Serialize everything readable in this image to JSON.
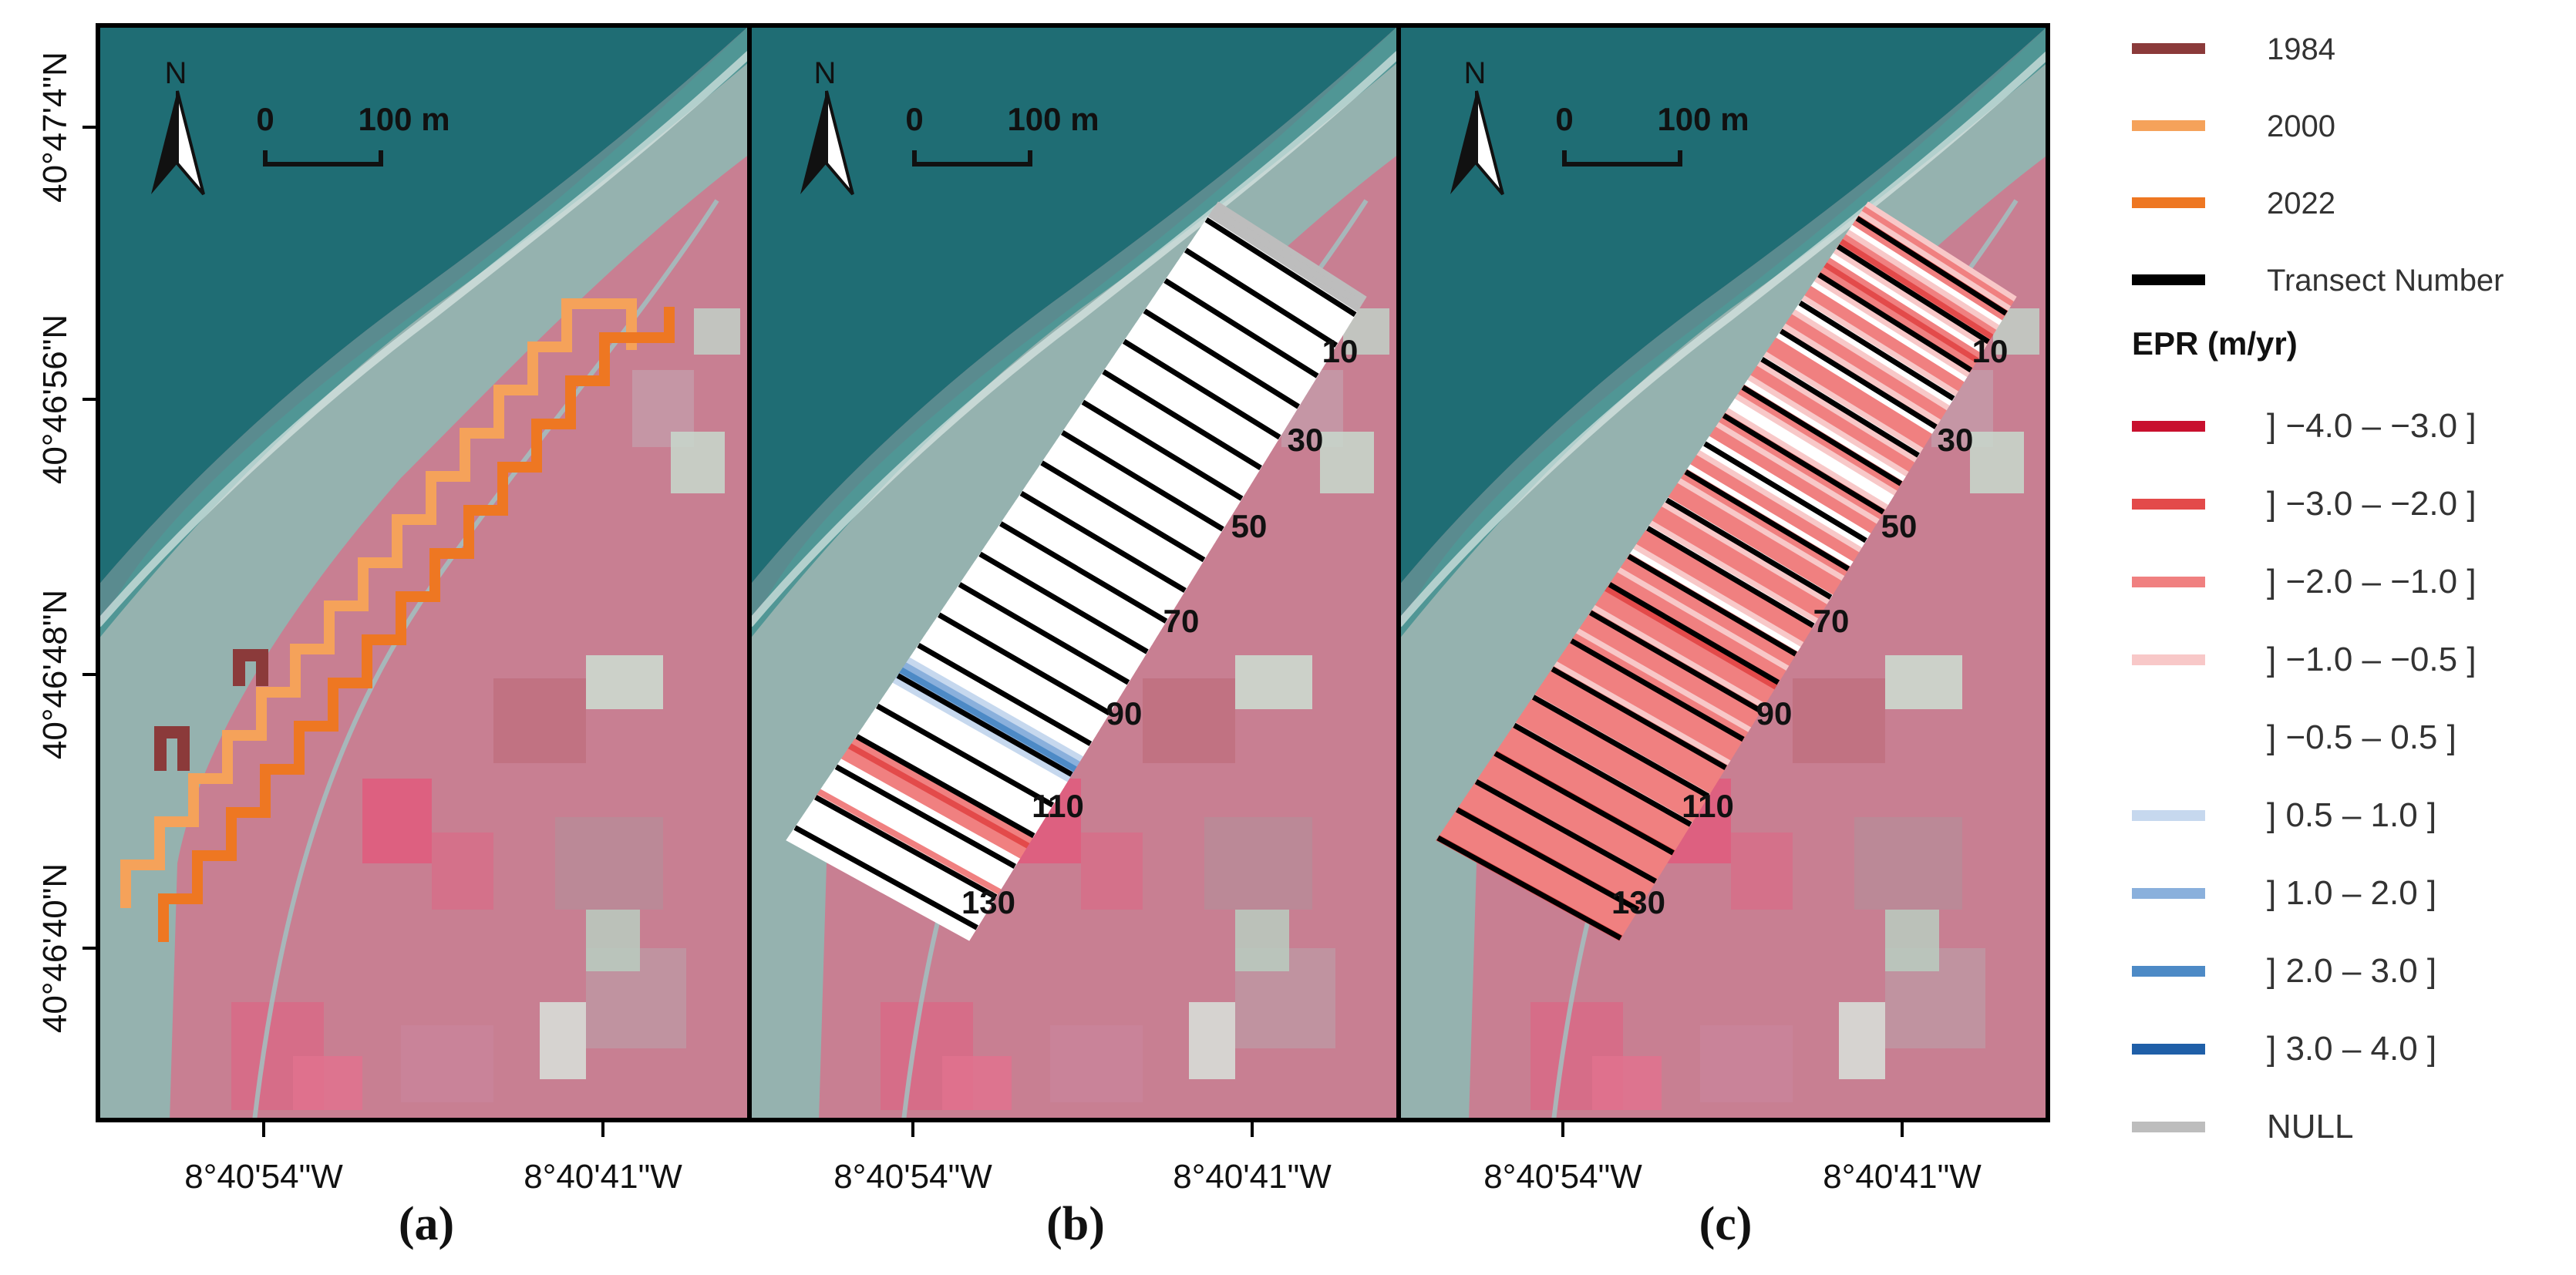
{
  "figure": {
    "panels": [
      {
        "id": "a",
        "label": "(a)",
        "x_ticks": [
          "8°40'54\"W",
          "8°40'41\"W"
        ],
        "north_label": "N",
        "scalebar": {
          "start": "0",
          "end": "100 m"
        },
        "content": "shorelines",
        "transect_labels": []
      },
      {
        "id": "b",
        "label": "(b)",
        "x_ticks": [
          "8°40'54\"W",
          "8°40'41\"W"
        ],
        "north_label": "N",
        "scalebar": {
          "start": "0",
          "end": "100 m"
        },
        "content": "epr_transects",
        "transect_labels": [
          "10",
          "30",
          "50",
          "70",
          "90",
          "110",
          "130"
        ]
      },
      {
        "id": "c",
        "label": "(c)",
        "x_ticks": [
          "8°40'54\"W",
          "8°40'41\"W"
        ],
        "north_label": "N",
        "scalebar": {
          "start": "0",
          "end": "100 m"
        },
        "content": "epr_transects",
        "transect_labels": [
          "10",
          "30",
          "50",
          "70",
          "90",
          "110",
          "130"
        ]
      }
    ],
    "y_ticks": [
      "40°47'4\"N",
      "40°46'56\"N",
      "40°46'48\"N",
      "40°46'40\"N"
    ],
    "legend": {
      "lines": [
        {
          "label": "1984",
          "color": "#8B3A3A"
        },
        {
          "label": "2000",
          "color": "#F5A25A"
        },
        {
          "label": "2022",
          "color": "#EE7722"
        },
        {
          "label": "Transect Number",
          "color": "#000000"
        }
      ],
      "epr_title": "EPR (m/yr)",
      "epr_classes": [
        {
          "label": "] −4.0 – −3.0 ]",
          "color": "#C8102E"
        },
        {
          "label": "] −3.0 – −2.0 ]",
          "color": "#E34A4A"
        },
        {
          "label": "] −2.0 – −1.0 ]",
          "color": "#F08080"
        },
        {
          "label": "] −1.0 – −0.5 ]",
          "color": "#F8C8C8"
        },
        {
          "label": "] −0.5 – 0.5 ]",
          "color": ""
        },
        {
          "label": "] 0.5 – 1.0 ]",
          "color": "#C6D8EE"
        },
        {
          "label": "] 1.0 – 2.0 ]",
          "color": "#8AB0DC"
        },
        {
          "label": "] 2.0 – 3.0 ]",
          "color": "#4D8AC6"
        },
        {
          "label": "] 3.0 – 4.0 ]",
          "color": "#1F5FA8"
        },
        {
          "label": "NULL",
          "color": "#BDBDBD"
        }
      ]
    },
    "transect_epr_b": [
      "null",
      "null",
      "null",
      "none",
      "none",
      "none",
      "none",
      "none",
      "none",
      "none",
      "none",
      "none",
      "none",
      "none",
      "none",
      "none",
      "none",
      "none",
      "none",
      "none",
      "none",
      "none",
      "none",
      "none",
      "none",
      "none",
      "none",
      "none",
      "none",
      "none",
      "none",
      "none",
      "none",
      "none",
      "none",
      "none",
      "none",
      "none",
      "none",
      "none",
      "none",
      "none",
      "none",
      "none",
      "none",
      "none",
      "none",
      "none",
      "none",
      "none",
      "none",
      "none",
      "none",
      "none",
      "none",
      "none",
      "none",
      "none",
      "none",
      "none",
      "none",
      "none",
      "none",
      "none",
      "none",
      "none",
      "none",
      "none",
      "none",
      "none",
      "none",
      "none",
      "none",
      "none",
      "none",
      "none",
      "none",
      "none",
      "none",
      "none",
      "none",
      "none",
      "none",
      "none",
      "none",
      "none",
      "none",
      "none",
      "none",
      "none",
      "pos1",
      "pos2",
      "pos3",
      "pos2",
      "pos1",
      "none",
      "none",
      "none",
      "none",
      "none",
      "none",
      "none",
      "none",
      "none",
      "none",
      "none",
      "neg2",
      "neg3",
      "neg2",
      "neg2",
      "none",
      "none",
      "none",
      "none",
      "none",
      "none",
      "neg2",
      "neg1",
      "none",
      "none",
      "none",
      "none",
      "none",
      "none",
      "none",
      "none"
    ],
    "transect_epr_c": [
      "neg1",
      "neg2",
      "neg1",
      "neg3",
      "neg2",
      "none",
      "neg1",
      "neg2",
      "neg3",
      "neg2",
      "neg1",
      "none",
      "neg2",
      "neg3",
      "neg2",
      "neg2",
      "neg1",
      "none",
      "neg2",
      "neg2",
      "neg1",
      "none",
      "none",
      "neg1",
      "neg2",
      "neg2",
      "neg1",
      "neg1",
      "none",
      "neg2",
      "neg2",
      "neg2",
      "neg1",
      "none",
      "neg1",
      "neg2",
      "neg2",
      "neg1",
      "none",
      "neg2",
      "neg2",
      "neg1",
      "none",
      "none",
      "neg1",
      "neg2",
      "neg2",
      "neg1",
      "neg2",
      "neg2",
      "none",
      "none",
      "none",
      "neg1",
      "neg2",
      "neg2",
      "none",
      "neg2",
      "neg2",
      "neg1",
      "neg2",
      "neg2",
      "neg2",
      "none",
      "neg1",
      "neg2",
      "neg2",
      "neg2",
      "neg1",
      "none",
      "neg2",
      "neg2",
      "neg2",
      "neg1",
      "none",
      "neg2",
      "neg2",
      "neg2",
      "neg1",
      "neg2",
      "neg2",
      "neg2",
      "neg3",
      "neg2",
      "neg2",
      "neg2",
      "neg1",
      "neg2",
      "neg2",
      "neg2",
      "neg2",
      "neg1",
      "neg2",
      "neg2",
      "neg2",
      "neg2",
      "neg2",
      "neg2",
      "neg1",
      "neg2",
      "neg2",
      "neg2",
      "neg2",
      "neg2",
      "neg2",
      "neg1",
      "neg2",
      "neg2",
      "neg2",
      "neg2",
      "neg2",
      "neg1",
      "neg2",
      "neg2",
      "neg2",
      "neg2",
      "neg2",
      "neg3",
      "neg2",
      "neg2",
      "neg2",
      "neg2",
      "neg2",
      "neg2",
      "neg2",
      "neg2",
      "neg2",
      "neg2",
      "neg2",
      "neg3",
      "neg2",
      "neg2",
      "neg2",
      "neg2",
      "neg2",
      "neg3"
    ]
  }
}
